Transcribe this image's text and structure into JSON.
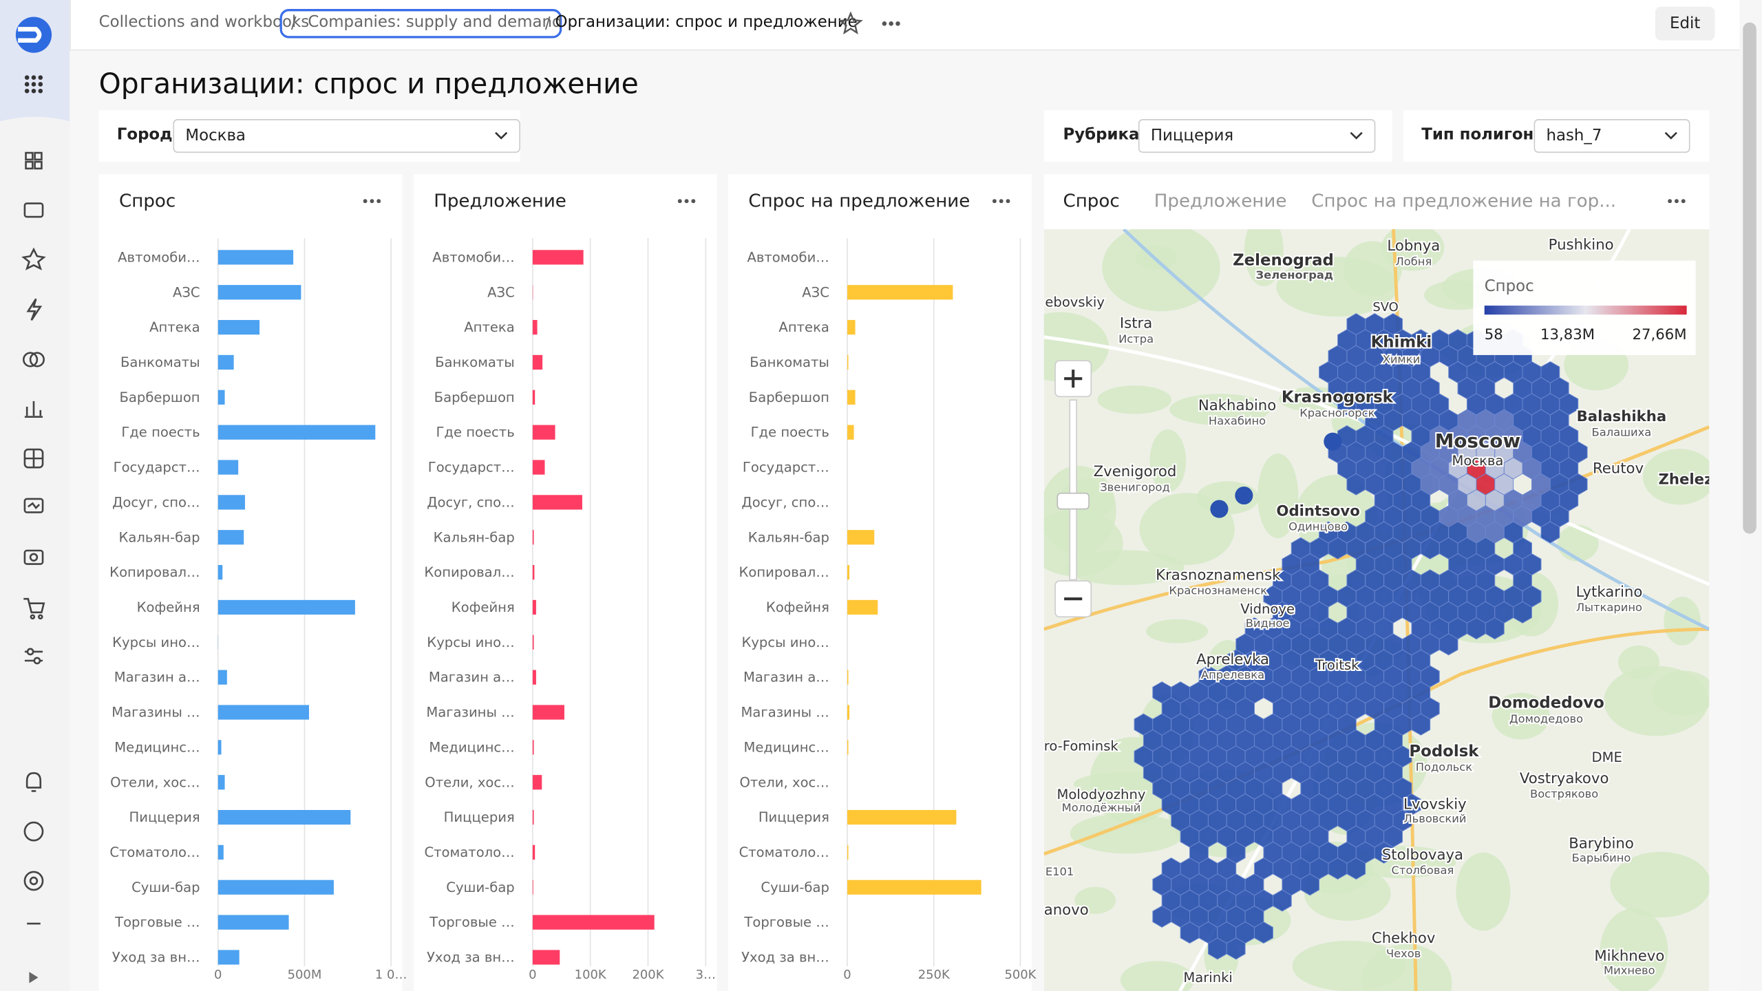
{
  "breadcrumbs": [
    "Collections and workbooks",
    "Companies: supply and demand",
    "Организации: спрос и предложение"
  ],
  "edit_button": "Edit",
  "title": "Организации: спрос и предложение",
  "filters": [
    {
      "label": "Город",
      "value": "Москва"
    },
    {
      "label": "Рубрика",
      "value": "Пиццерия"
    },
    {
      "label": "Тип полигона",
      "value": "hash_7"
    }
  ],
  "widgets": [
    {
      "title": "Спрос",
      "chart_data": {
        "type": "bar",
        "orientation": "horizontal",
        "color": "#4da2f1",
        "grid": true,
        "categories": [
          "Автомоби…",
          "АЗС",
          "Аптека",
          "Банкоматы",
          "Барбершоп",
          "Где поесть",
          "Государст…",
          "Досуг, спо…",
          "Кальян-бар",
          "Копировал…",
          "Кофейня",
          "Курсы ино…",
          "Магазин а…",
          "Магазины …",
          "Медицинс…",
          "Отели, хос…",
          "Пиццерия",
          "Стоматоло…",
          "Суши-бар",
          "Торговые …",
          "Уход за вн…"
        ],
        "values": [
          435000000,
          480000000,
          240000000,
          91000000,
          39000000,
          909000000,
          117000000,
          156000000,
          149000000,
          26000000,
          792000000,
          1000000,
          52000000,
          526000000,
          19000000,
          39000000,
          766000000,
          32000000,
          669000000,
          409000000,
          123000000
        ],
        "xlim": [
          0,
          1000000000
        ],
        "xticks": [
          0,
          {
            "value": 500000000,
            "label": "500M"
          },
          {
            "value": 1000000000,
            "label": "1 0…"
          }
        ]
      }
    },
    {
      "title": "Предложение",
      "chart_data": {
        "type": "bar",
        "orientation": "horizontal",
        "color": "#ff3d64",
        "grid": true,
        "categories": [
          "Автомоби…",
          "АЗС",
          "Аптека",
          "Банкоматы",
          "Барбершоп",
          "Где поесть",
          "Государст…",
          "Досуг, спо…",
          "Кальян-бар",
          "Копировал…",
          "Кофейня",
          "Курсы ино…",
          "Магазин а…",
          "Магазины …",
          "Медицинс…",
          "Отели, хос…",
          "Пиццерия",
          "Стоматоло…",
          "Суши-бар",
          "Торговые …",
          "Уход за вн…"
        ],
        "values": [
          88000,
          500,
          8000,
          17000,
          4000,
          39000,
          21000,
          86000,
          2000,
          3000,
          6000,
          2000,
          6000,
          55000,
          2000,
          16000,
          2000,
          4000,
          1000,
          211000,
          47000
        ],
        "xlim": [
          0,
          300000
        ],
        "xticks": [
          0,
          {
            "value": 100000,
            "label": "100K"
          },
          {
            "value": 200000,
            "label": "200K"
          },
          {
            "value": 300000,
            "label": "3…"
          }
        ]
      }
    },
    {
      "title": "Спрос на предложение",
      "chart_data": {
        "type": "bar",
        "orientation": "horizontal",
        "color": "#ffc636",
        "grid": true,
        "categories": [
          "Автомоби…",
          "АЗС",
          "Аптека",
          "Банкоматы",
          "Барбершоп",
          "Где поесть",
          "Государст…",
          "Досуг, спо…",
          "Кальян-бар",
          "Копировал…",
          "Кофейня",
          "Курсы ино…",
          "Магазин а…",
          "Магазины …",
          "Медицинс…",
          "Отели, хос…",
          "Пиццерия",
          "Стоматоло…",
          "Суши-бар",
          "Торговые …",
          "Уход за вн…"
        ],
        "values": [
          0,
          305000,
          23000,
          3000,
          23000,
          19000,
          0,
          0,
          78000,
          6000,
          88000,
          0,
          3000,
          6000,
          3000,
          0,
          315000,
          3000,
          387000,
          0,
          0
        ],
        "xlim": [
          0,
          500000
        ],
        "xticks": [
          0,
          {
            "value": 250000,
            "label": "250K"
          },
          {
            "value": 500000,
            "label": "500K"
          }
        ]
      }
    }
  ],
  "map_widget": {
    "tabs": [
      "Спрос",
      "Предложение",
      "Спрос на предложение на гор..."
    ],
    "legend": {
      "title": "Спрос",
      "labels": [
        "58",
        "13,83M",
        "27,66M"
      ]
    },
    "places": [
      "Zelenograd",
      "Зеленоград",
      "Lobnya",
      "Лобня",
      "Pushkino",
      "SVO",
      "ebovskiy",
      "Istra",
      "Истра",
      "Khimki",
      "Химки",
      "Nakhabino",
      "Нахабино",
      "Krasnogorsk",
      "Красногорск",
      "Balashikha",
      "Балашиха",
      "Moscow",
      "Москва",
      "Reutov",
      "Zhelez",
      "Zvenigorod",
      "Звенигород",
      "Odintsovo",
      "Одинцово",
      "Krasnoznamensk",
      "Краснознаменск",
      "Lytkarino",
      "Лыткарино",
      "Vidnoye",
      "Видное",
      "Aprelevka",
      "Апрелевка",
      "Troitsk",
      "Domodedovo",
      "Домодедово",
      "Podolsk",
      "Подольск",
      "DME",
      "ro-Fominsk",
      "Vostryakovo",
      "Востряково",
      "Molodyozhny",
      "Молодёжный",
      "Lvovskiy",
      "Львовский",
      "E101",
      "Barybino",
      "Барыбино",
      "Stolbovaya",
      "Столбовая",
      "anovo",
      "Chekhov",
      "Чехов",
      "Mikhnevo",
      "Михнево",
      "Marinki"
    ]
  }
}
